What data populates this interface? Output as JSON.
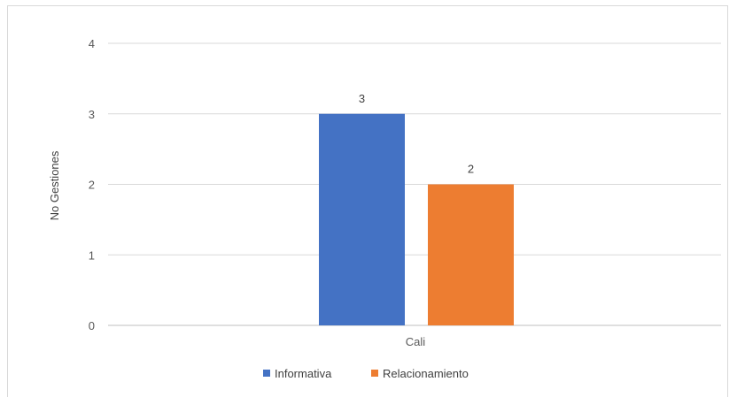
{
  "chart_data": {
    "type": "bar",
    "categories": [
      "Cali"
    ],
    "series": [
      {
        "name": "Informativa",
        "values": [
          3
        ],
        "color": "#4472C4"
      },
      {
        "name": "Relacionamiento",
        "values": [
          2
        ],
        "color": "#ED7D31"
      }
    ],
    "ylabel": "No Gestiones",
    "xlabel": "",
    "ylim": [
      0,
      4
    ],
    "yticks": [
      "0",
      "1",
      "2",
      "3",
      "4"
    ],
    "data_labels": [
      "3",
      "2"
    ],
    "grid": true,
    "legend_position": "bottom"
  }
}
